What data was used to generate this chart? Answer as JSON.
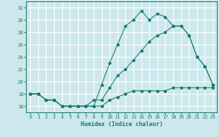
{
  "xlabel": "Humidex (Indice chaleur)",
  "xlim": [
    -0.5,
    23.5
  ],
  "ylim": [
    15,
    33
  ],
  "yticks": [
    16,
    18,
    20,
    22,
    24,
    26,
    28,
    30,
    32
  ],
  "xticks": [
    0,
    1,
    2,
    3,
    4,
    5,
    6,
    7,
    8,
    9,
    10,
    11,
    12,
    13,
    14,
    15,
    16,
    17,
    18,
    19,
    20,
    21,
    22,
    23
  ],
  "bg_color": "#cde8ec",
  "grid_color": "#ffffff",
  "line_color": "#1a7a6e",
  "line1_x": [
    0,
    1,
    2,
    3,
    4,
    5,
    6,
    7,
    8,
    9,
    10,
    11,
    12,
    13,
    14,
    15,
    16,
    17,
    18,
    19,
    20,
    21,
    22,
    23
  ],
  "line1_y": [
    18,
    18,
    17,
    17,
    16,
    16,
    16,
    16,
    16,
    19.5,
    23,
    26,
    29,
    30,
    31.5,
    30,
    31,
    30.5,
    29,
    29,
    27.5,
    24,
    22.5,
    19.5
  ],
  "line2_x": [
    0,
    1,
    2,
    3,
    4,
    5,
    6,
    7,
    8,
    9,
    10,
    11,
    12,
    13,
    14,
    15,
    16,
    17,
    18,
    19,
    20,
    21,
    22,
    23
  ],
  "line2_y": [
    18,
    18,
    17,
    17,
    16,
    16,
    16,
    16,
    17,
    17,
    19,
    21,
    22,
    23.5,
    25,
    26.5,
    27.5,
    28,
    29,
    29,
    27.5,
    24,
    22.5,
    19.5
  ],
  "line3_x": [
    0,
    1,
    2,
    3,
    4,
    5,
    6,
    7,
    8,
    9,
    10,
    11,
    12,
    13,
    14,
    15,
    16,
    17,
    18,
    19,
    20,
    21,
    22,
    23
  ],
  "line3_y": [
    18,
    18,
    17,
    17,
    16,
    16,
    16,
    16,
    16,
    16,
    17,
    17.5,
    18,
    18.5,
    18.5,
    18.5,
    18.5,
    18.5,
    19,
    19,
    19,
    19,
    19,
    19
  ]
}
